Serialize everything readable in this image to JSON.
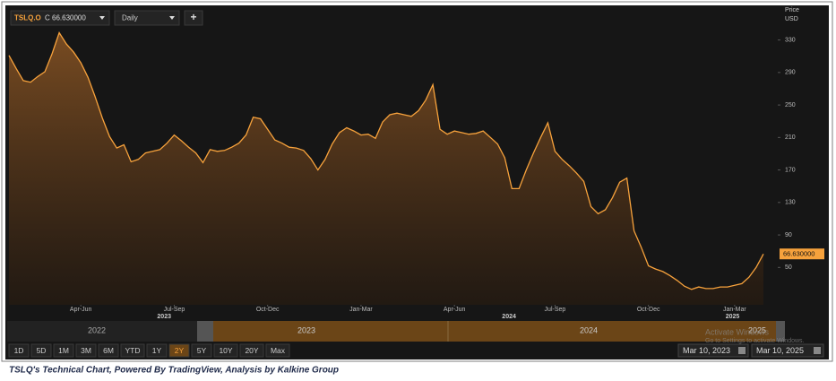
{
  "toolbar": {
    "symbol": "TSLQ.O",
    "quote": "C 66.630000",
    "interval": "Daily",
    "add": "+"
  },
  "chart_data": {
    "type": "area",
    "ylabel": "Price",
    "yunit": "USD",
    "color": "#f7a23c",
    "values": [
      311,
      295,
      280,
      278,
      285,
      291,
      313,
      339,
      325,
      315,
      302,
      284,
      260,
      234,
      211,
      197,
      201,
      180,
      183,
      191,
      193,
      195,
      203,
      213,
      206,
      198,
      191,
      179,
      195,
      193,
      194,
      198,
      203,
      213,
      235,
      233,
      220,
      207,
      203,
      198,
      197,
      194,
      184,
      170,
      183,
      202,
      216,
      222,
      218,
      213,
      214,
      209,
      229,
      238,
      240,
      238,
      236,
      243,
      256,
      275,
      220,
      214,
      218,
      216,
      214,
      215,
      218,
      210,
      202,
      185,
      147,
      147,
      170,
      191,
      210,
      228,
      193,
      183,
      175,
      166,
      156,
      125,
      116,
      121,
      136,
      155,
      160,
      95,
      75,
      52,
      48,
      45,
      40,
      34,
      27,
      23,
      26,
      24,
      24,
      26,
      26,
      28,
      30,
      38,
      50,
      66.63
    ],
    "xlim": [
      0,
      107
    ],
    "xticks": [
      {
        "value": 10,
        "label": "Apr-Jun"
      },
      {
        "value": 23,
        "label": "Jul-Sep"
      },
      {
        "value": 36,
        "label": "Oct-Dec"
      },
      {
        "value": 49,
        "label": "Jan-Mar"
      },
      {
        "value": 62,
        "label": "Apr-Jun"
      },
      {
        "value": 76,
        "label": "Jul-Sep"
      },
      {
        "value": 89,
        "label": "Oct-Dec"
      },
      {
        "value": 101,
        "label": "Jan-Mar"
      }
    ],
    "year_ticks": [
      {
        "value": 21.6,
        "label": "2023"
      },
      {
        "value": 69.6,
        "label": "2024"
      },
      {
        "value": 100.7,
        "label": "2025"
      }
    ],
    "ylim": [
      4,
      366
    ],
    "yticks": [
      50,
      90,
      130,
      170,
      210,
      250,
      290,
      330
    ],
    "grid": false,
    "last_price": {
      "value": 66.63,
      "label": "66.630000"
    }
  },
  "navigator": {
    "years": [
      "2022",
      "2023",
      "2024",
      "2025"
    ]
  },
  "range_buttons": [
    "1D",
    "5D",
    "1M",
    "3M",
    "6M",
    "YTD",
    "1Y",
    "2Y",
    "5Y",
    "10Y",
    "20Y",
    "Max"
  ],
  "active_range": "2Y",
  "date_range": [
    "Mar 10, 2023",
    "Mar 10, 2025"
  ],
  "watermark": [
    "Activate Windows",
    "Go to Settings to activate Windows."
  ],
  "caption": "TSLQ's Technical Chart, Powered By TradingView, Analysis by Kalkine Group"
}
